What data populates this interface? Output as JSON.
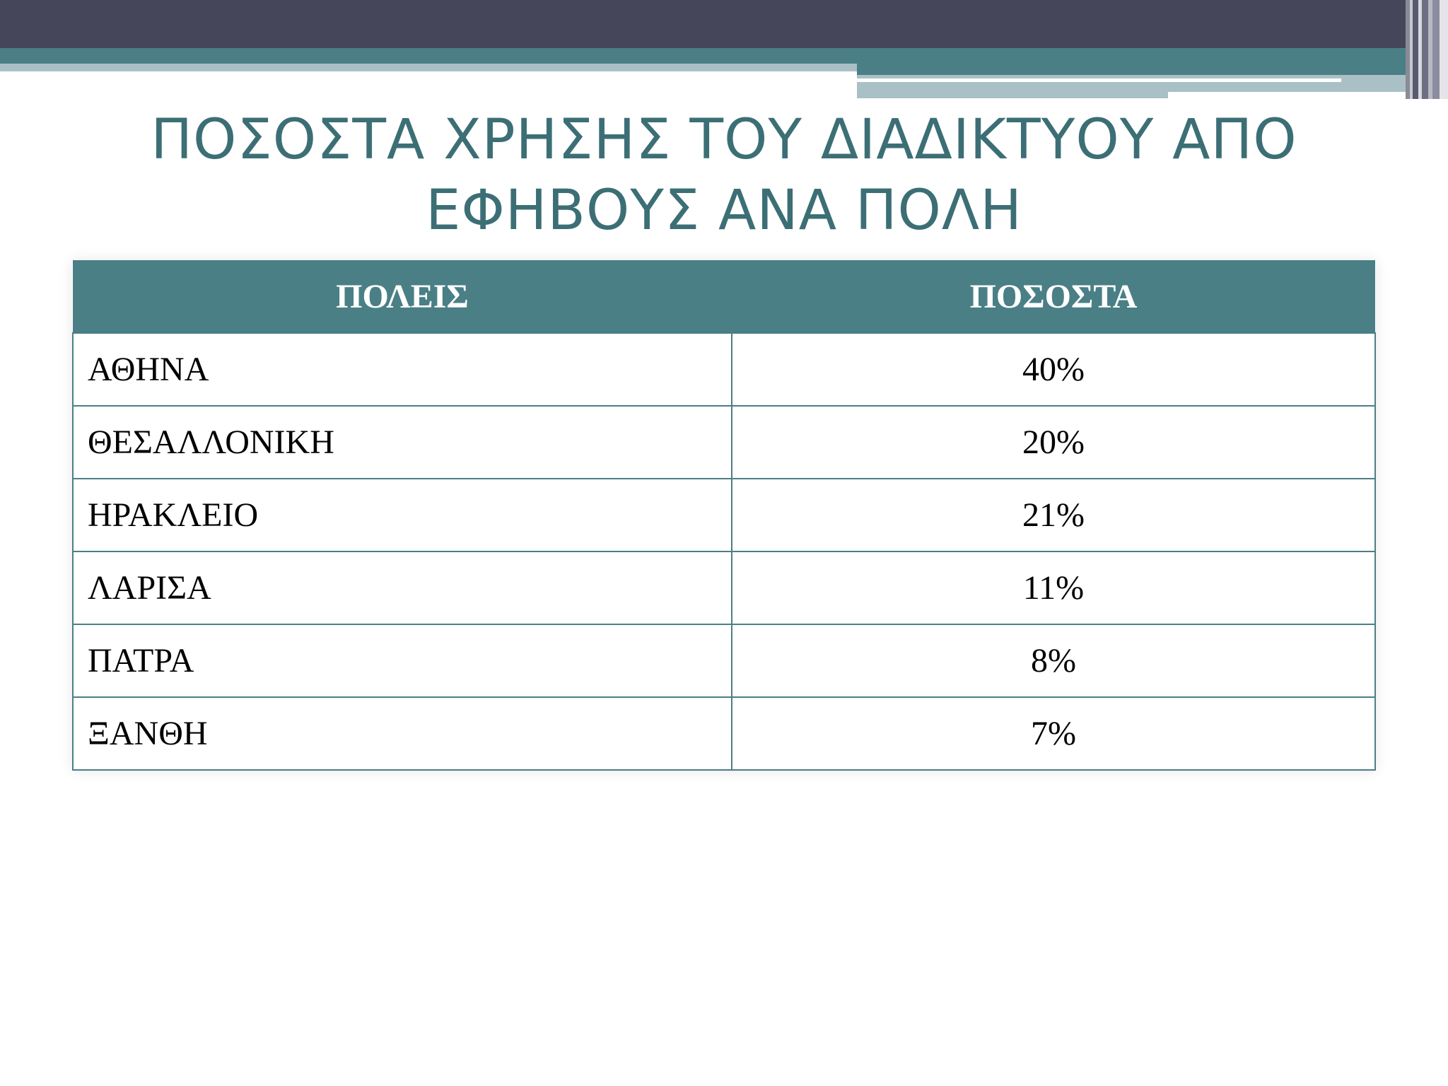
{
  "slide": {
    "title": "ΠΟΣΟΣΤΑ ΧΡΗΣΗΣ ΤΟΥ ΔΙΑΔΙΚΤΥΟΥ ΑΠΟ ΕΦΗΒΟΥΣ ΑΝΑ ΠΟΛΗ"
  },
  "table": {
    "headers": [
      "ΠΟΛΕΙΣ",
      "ΠΟΣΟΣΤΑ"
    ],
    "rows": [
      {
        "city": "ΑΘΗΝΑ",
        "percent": "40%"
      },
      {
        "city": "ΘΕΣΑΛΛΟΝΙΚΗ",
        "percent": "20%"
      },
      {
        "city": "ΗΡΑΚΛΕΙΟ",
        "percent": "21%"
      },
      {
        "city": "ΛΑΡΙΣΑ",
        "percent": "11%"
      },
      {
        "city": "ΠΑΤΡΑ",
        "percent": "8%"
      },
      {
        "city": "ΞΑΝΘΗ",
        "percent": "7%"
      }
    ]
  },
  "colors": {
    "header_dark": "#46465a",
    "accent_teal": "#4a7f86",
    "accent_light": "#a9c1c6",
    "title_color": "#3c6f75"
  }
}
